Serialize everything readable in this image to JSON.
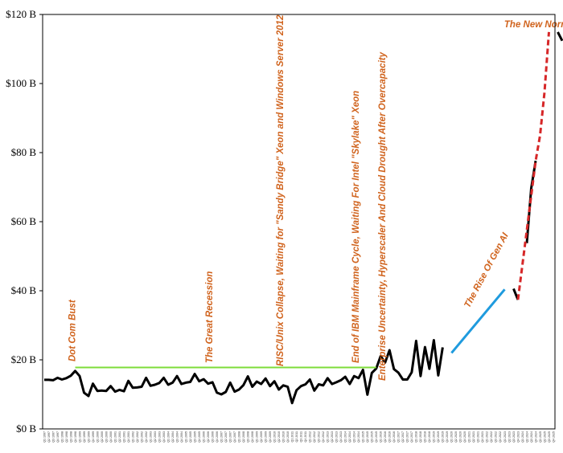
{
  "chart_data": {
    "type": "line",
    "title": "",
    "xlabel": "",
    "ylabel": "",
    "y_unit": "$B",
    "ylim": [
      0,
      120
    ],
    "y_ticks": [
      "$0 B",
      "$20 B",
      "$40 B",
      "$60 B",
      "$80 B",
      "$100 B",
      "$120 B"
    ],
    "grid": false,
    "x_start_quarter": "Q1 1997",
    "x_end_quarter": "Q4 2025",
    "series": [
      {
        "color": "#000000",
        "style": "solid",
        "values": [
          14.2,
          14.2,
          14.1,
          14.8,
          14.3,
          14.7,
          15.4,
          16.8,
          15.3,
          10.5,
          9.5,
          13.1,
          11.0,
          11.1,
          11.0,
          12.4,
          10.8,
          11.3,
          10.9,
          13.9,
          11.9,
          12.0,
          12.2,
          14.8,
          12.5,
          12.8,
          13.3,
          14.8,
          12.8,
          13.4,
          15.3,
          13.0,
          13.4,
          13.6,
          15.9,
          13.8,
          14.4,
          13.1,
          13.5,
          10.5,
          10.0,
          10.7,
          13.4,
          10.8,
          11.4,
          12.7,
          15.2,
          12.2,
          13.7,
          13.0,
          14.6,
          12.4,
          13.8,
          11.4,
          12.6,
          12.2,
          7.5,
          11.2,
          12.4,
          12.9,
          14.3,
          11.1,
          12.9,
          12.6,
          14.7,
          13.0,
          13.5,
          14.1,
          15.1,
          13.0,
          15.3,
          14.7,
          17.1,
          9.9,
          16.2,
          17.5,
          21.1,
          19.2,
          22.8,
          17.3,
          16.3,
          14.3,
          14.3,
          16.4,
          25.5,
          15.3,
          23.7,
          17.4,
          25.7,
          15.5,
          23.6
        ]
      },
      {
        "color": "#000000",
        "style": "solid",
        "values": [
          null,
          null,
          null,
          null,
          null,
          null,
          null,
          null,
          null,
          null,
          null,
          null,
          null,
          null,
          null,
          null,
          null,
          null,
          null,
          null,
          null,
          null,
          null,
          null,
          null,
          null,
          null,
          null,
          null,
          null,
          null,
          null,
          null,
          null,
          null,
          null,
          null,
          null,
          null,
          null,
          null,
          null,
          null,
          null,
          null,
          null,
          null,
          null,
          null,
          null,
          null,
          null,
          null,
          null,
          null,
          null,
          null,
          null,
          null,
          null,
          null,
          null,
          null,
          null,
          null,
          null,
          null,
          null,
          null,
          null,
          null,
          null,
          null,
          null,
          null,
          null,
          null,
          null,
          null,
          null,
          null,
          null,
          null,
          null,
          null,
          null,
          null,
          null,
          null,
          null,
          null,
          null,
          null,
          null,
          null,
          null,
          null,
          null,
          null,
          null,
          null,
          null,
          null,
          null,
          null,
          null,
          40.6,
          37.4,
          null,
          53.8,
          69.7,
          77.6,
          null,
          null,
          null,
          null,
          114.9,
          112.4
        ]
      },
      {
        "color": "#d62728",
        "style": "dashed",
        "values": [
          null,
          null,
          null,
          null,
          null,
          null,
          null,
          null,
          null,
          null,
          null,
          null,
          null,
          null,
          null,
          null,
          null,
          null,
          null,
          null,
          null,
          null,
          null,
          null,
          null,
          null,
          null,
          null,
          null,
          null,
          null,
          null,
          null,
          null,
          null,
          null,
          null,
          null,
          null,
          null,
          null,
          null,
          null,
          null,
          null,
          null,
          null,
          null,
          null,
          null,
          null,
          null,
          null,
          null,
          null,
          null,
          null,
          null,
          null,
          null,
          null,
          null,
          null,
          null,
          null,
          null,
          null,
          null,
          null,
          null,
          null,
          null,
          null,
          null,
          null,
          null,
          null,
          null,
          null,
          null,
          null,
          null,
          null,
          null,
          null,
          null,
          null,
          null,
          null,
          null,
          null,
          null,
          null,
          null,
          null,
          null,
          null,
          null,
          null,
          null,
          null,
          null,
          null,
          null,
          null,
          null,
          null,
          37.4,
          null,
          null,
          null,
          77.6,
          85.0,
          97.5,
          114.9
        ]
      },
      {
        "color": "#1f9bde",
        "style": "solid",
        "values": [
          null,
          null,
          null,
          null,
          null,
          null,
          null,
          null,
          null,
          null,
          null,
          null,
          null,
          null,
          null,
          null,
          null,
          null,
          null,
          null,
          null,
          null,
          null,
          null,
          null,
          null,
          null,
          null,
          null,
          null,
          null,
          null,
          null,
          null,
          null,
          null,
          null,
          null,
          null,
          null,
          null,
          null,
          null,
          null,
          null,
          null,
          null,
          null,
          null,
          null,
          null,
          null,
          null,
          null,
          null,
          null,
          null,
          null,
          null,
          null,
          null,
          null,
          null,
          null,
          null,
          null,
          null,
          null,
          null,
          null,
          null,
          null,
          null,
          null,
          null,
          null,
          null,
          null,
          null,
          null,
          null,
          null,
          null,
          null,
          null,
          null,
          null,
          null,
          null,
          null,
          null,
          null,
          22.0,
          null,
          null,
          null,
          null,
          null,
          null,
          null,
          null,
          null,
          null,
          null,
          40.4
        ]
      },
      {
        "color": "#7ddc3a",
        "style": "solid",
        "values": [
          null,
          null,
          null,
          null,
          null,
          null,
          null,
          17.8,
          null,
          null,
          null,
          null,
          null,
          null,
          null,
          null,
          null,
          null,
          null,
          null,
          null,
          null,
          null,
          null,
          null,
          null,
          null,
          null,
          null,
          null,
          null,
          null,
          null,
          null,
          null,
          null,
          null,
          null,
          null,
          null,
          null,
          null,
          null,
          null,
          null,
          null,
          null,
          null,
          null,
          null,
          null,
          null,
          null,
          null,
          null,
          null,
          null,
          null,
          null,
          null,
          null,
          null,
          null,
          null,
          null,
          null,
          null,
          null,
          null,
          null,
          null,
          null,
          null,
          null,
          null,
          17.8
        ]
      }
    ],
    "annotations": [
      {
        "text": "Dot Com Bust",
        "x_index": 7
      },
      {
        "text": "The Great Recession",
        "x_index": 38
      },
      {
        "text": "RISC/Unix Collapse, Waiting for \"Sandy Bridge\" Xeon and Windows Server 2012",
        "x_index": 54
      },
      {
        "text": "End of IBM Mainframe Cycle, Waiting For Intel \"Skylake\" Xeon",
        "x_index": 71
      },
      {
        "text": "Enterprise Uncertainty, Hyperscaler And Cloud Drought After Overcapacity",
        "x_index": 77
      },
      {
        "text": "The Rise Of Gen AI",
        "x_index": 96
      },
      {
        "text": "The New Normal",
        "x_index": 107
      }
    ]
  }
}
